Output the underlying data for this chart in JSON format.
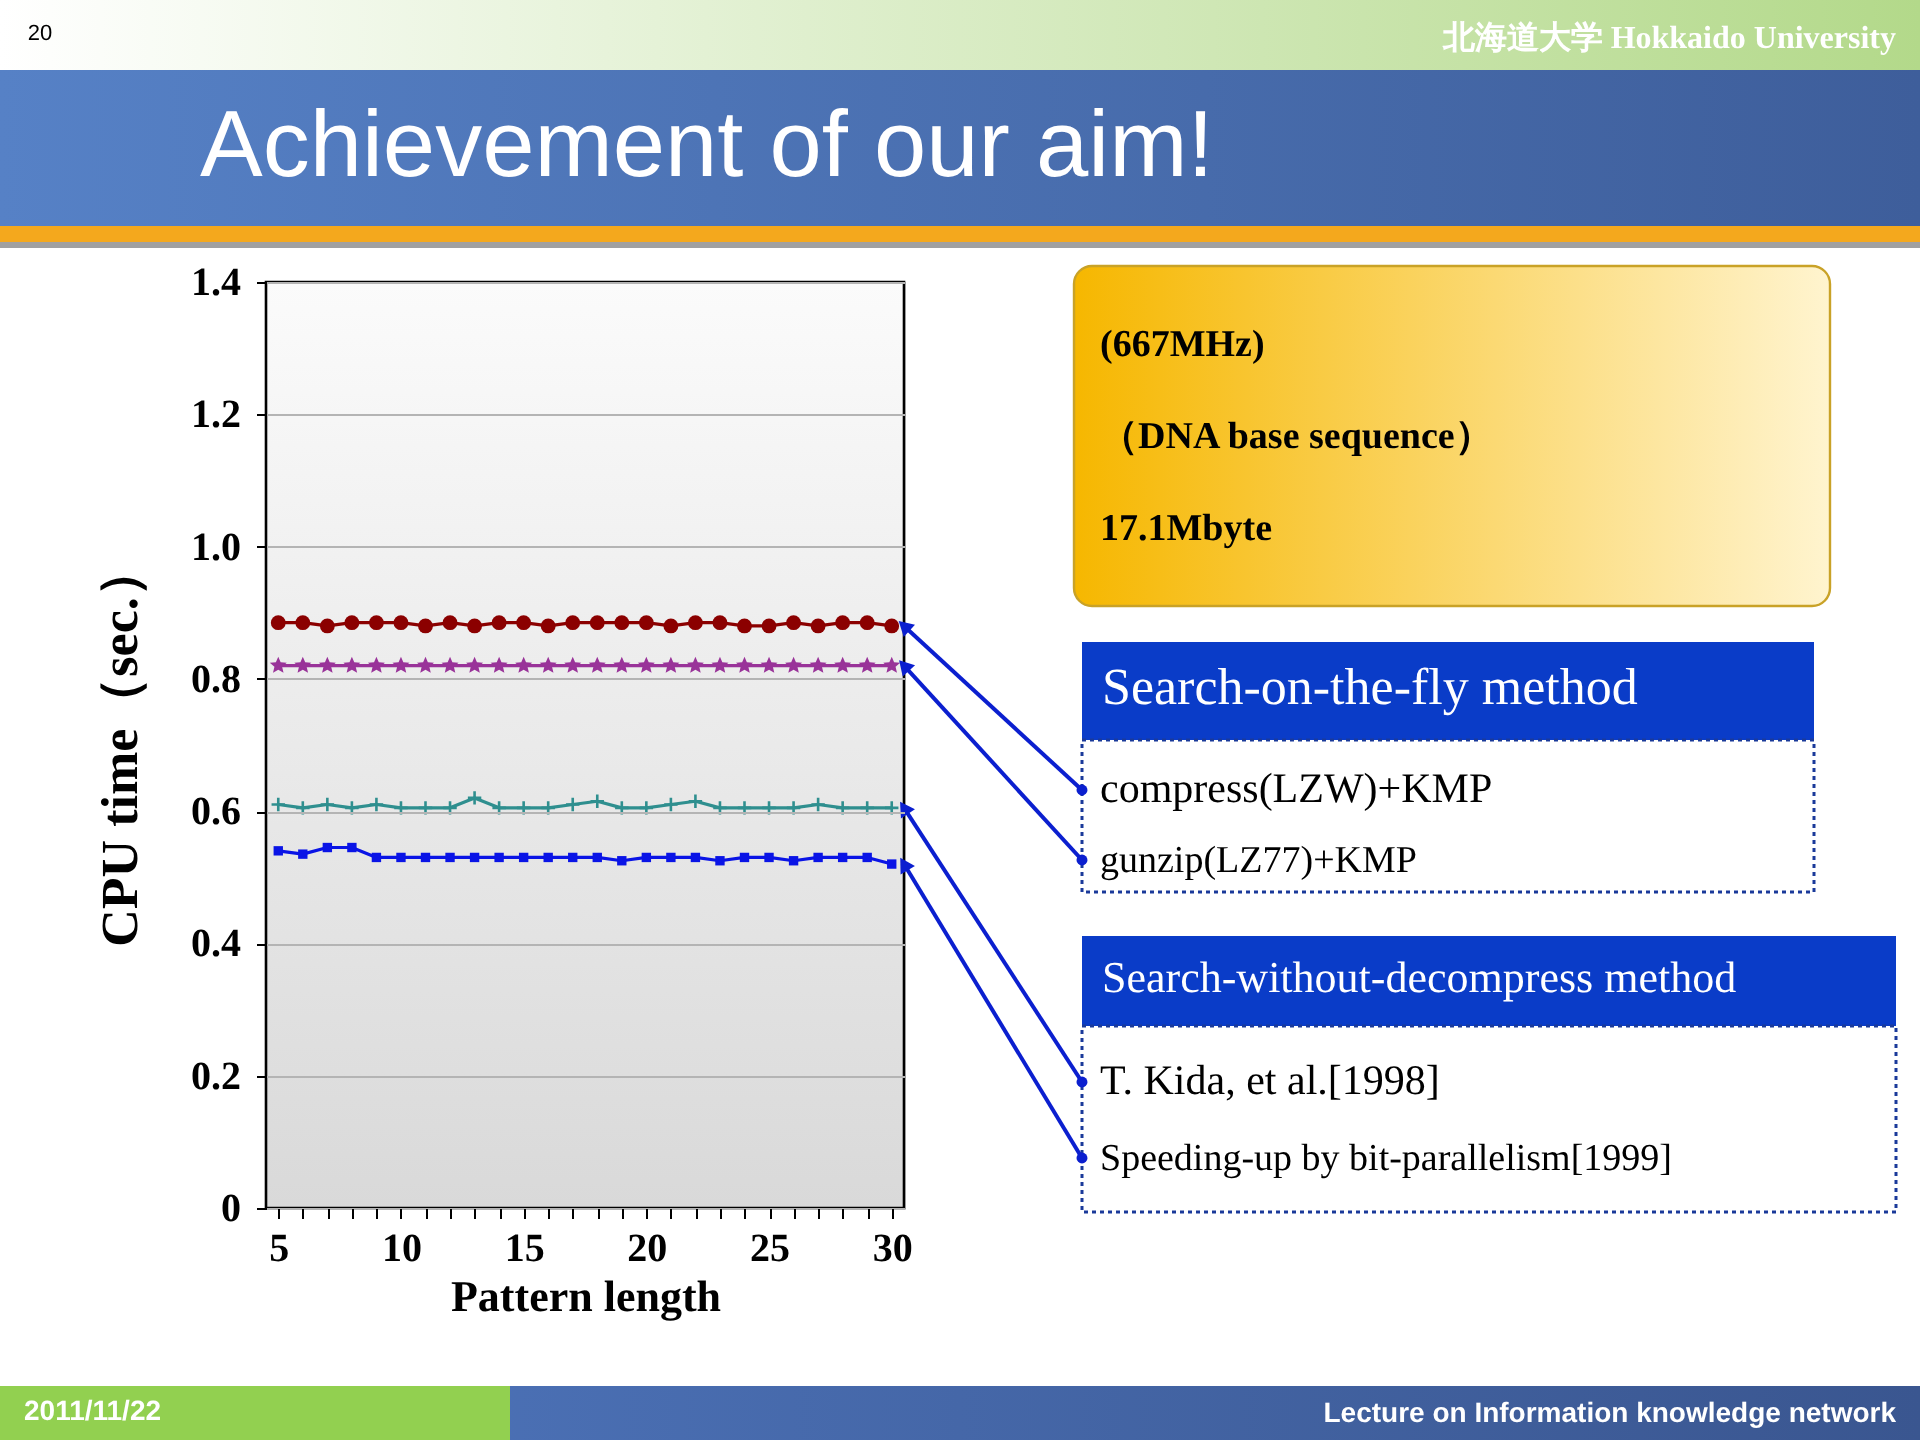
{
  "chart_data": {
    "type": "line",
    "title": "Achievement of our aim!",
    "xlabel": "Pattern length",
    "ylabel": "CPU time（sec.）",
    "x": [
      5,
      6,
      7,
      8,
      9,
      10,
      11,
      12,
      13,
      14,
      15,
      16,
      17,
      18,
      19,
      20,
      21,
      22,
      23,
      24,
      25,
      26,
      27,
      28,
      29,
      30
    ],
    "xlim": [
      4.5,
      30.5
    ],
    "xticks": [
      5,
      {
        "value": 6,
        "label": null
      },
      {
        "value": 7,
        "label": null
      },
      {
        "value": 8,
        "label": null
      },
      {
        "value": 9,
        "label": null
      },
      10,
      {
        "value": 11,
        "label": null
      },
      {
        "value": 12,
        "label": null
      },
      {
        "value": 13,
        "label": null
      },
      {
        "value": 14,
        "label": null
      },
      15,
      {
        "value": 16,
        "label": null
      },
      {
        "value": 17,
        "label": null
      },
      {
        "value": 18,
        "label": null
      },
      {
        "value": 19,
        "label": null
      },
      20,
      {
        "value": 21,
        "label": null
      },
      {
        "value": 22,
        "label": null
      },
      {
        "value": 23,
        "label": null
      },
      {
        "value": 24,
        "label": null
      },
      25,
      {
        "value": 26,
        "label": null
      },
      {
        "value": 27,
        "label": null
      },
      {
        "value": 28,
        "label": null
      },
      {
        "value": 29,
        "label": null
      },
      30
    ],
    "ylim": [
      0,
      1.4
    ],
    "yticks": [
      0,
      0.2,
      0.4,
      0.6,
      0.8,
      {
        "value": 1,
        "label": "1.0"
      },
      1.2,
      1.4
    ],
    "grid": "y",
    "series": [
      {
        "name": "compress(LZW)+KMP",
        "color": "#8b0000",
        "marker": "circle",
        "values": [
          0.885,
          0.885,
          0.88,
          0.885,
          0.885,
          0.885,
          0.88,
          0.885,
          0.88,
          0.885,
          0.885,
          0.88,
          0.885,
          0.885,
          0.885,
          0.885,
          0.88,
          0.885,
          0.885,
          0.88,
          0.88,
          0.885,
          0.88,
          0.885,
          0.885,
          0.88
        ]
      },
      {
        "name": "gunzip(LZ77)+KMP",
        "color": "#993399",
        "marker": "star",
        "values": [
          0.82,
          0.82,
          0.82,
          0.82,
          0.82,
          0.82,
          0.82,
          0.82,
          0.82,
          0.82,
          0.82,
          0.82,
          0.82,
          0.82,
          0.82,
          0.82,
          0.82,
          0.82,
          0.82,
          0.82,
          0.82,
          0.82,
          0.82,
          0.82,
          0.82,
          0.82
        ]
      },
      {
        "name": "T. Kida, et al.[1998]",
        "color": "#2f8f8f",
        "marker": "cross",
        "values": [
          0.61,
          0.605,
          0.61,
          0.605,
          0.61,
          0.605,
          0.605,
          0.605,
          0.62,
          0.605,
          0.605,
          0.605,
          0.61,
          0.615,
          0.605,
          0.605,
          0.61,
          0.615,
          0.605,
          0.605,
          0.605,
          0.605,
          0.61,
          0.605,
          0.605,
          0.605
        ]
      },
      {
        "name": "Speeding-up by bit-parallelism[1999]",
        "color": "#0a14e6",
        "marker": "square",
        "values": [
          0.54,
          0.535,
          0.545,
          0.545,
          0.53,
          0.53,
          0.53,
          0.53,
          0.53,
          0.53,
          0.53,
          0.53,
          0.53,
          0.53,
          0.525,
          0.53,
          0.53,
          0.53,
          0.525,
          0.53,
          0.53,
          0.525,
          0.53,
          0.53,
          0.53,
          0.52
        ]
      }
    ],
    "annotations": [
      "北海道大学 Hokkaido University",
      "20",
      "(667MHz)",
      "（DNA base sequence）",
      "17.1Mbyte",
      "Search-on-the-fly method",
      "Search-without-decompress method",
      "2011/11/22",
      "Lecture on Information knowledge network"
    ]
  }
}
